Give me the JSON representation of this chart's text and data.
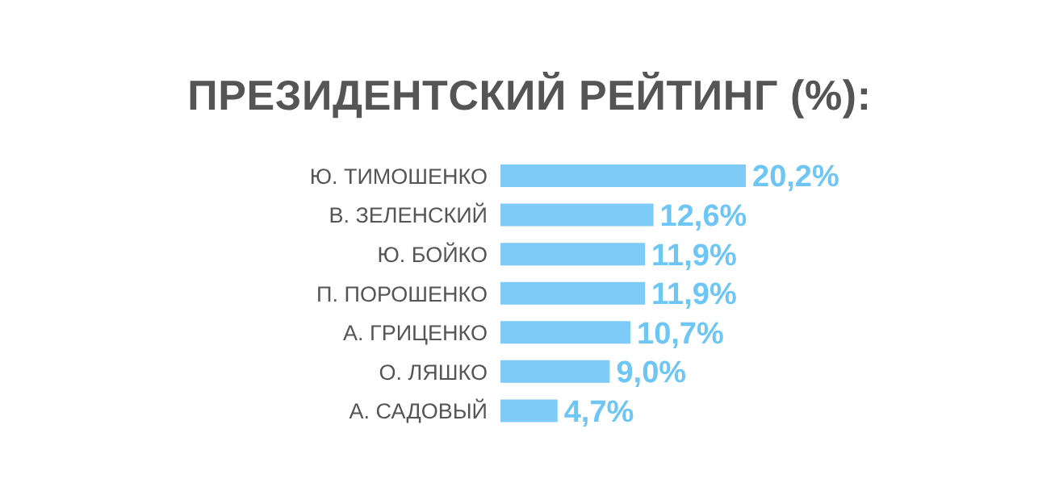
{
  "chart_data": {
    "type": "bar",
    "orientation": "horizontal",
    "title": "ПРЕЗИДЕНТСКИЙ РЕЙТИНГ (%):",
    "categories": [
      "Ю. ТИМОШЕНКО",
      "В. ЗЕЛЕНСКИЙ",
      "Ю. БОЙКО",
      "П. ПОРОШЕНКО",
      "А. ГРИЦЕНКО",
      "О. ЛЯШКО",
      "А. САДОВЫЙ"
    ],
    "values": [
      20.2,
      12.6,
      11.9,
      11.9,
      10.7,
      9.0,
      4.7
    ],
    "value_labels": [
      "20,2%",
      "12,6%",
      "11,9%",
      "11,9%",
      "10,7%",
      "9,0%",
      "4,7%"
    ],
    "color": "#7ecbf7"
  }
}
